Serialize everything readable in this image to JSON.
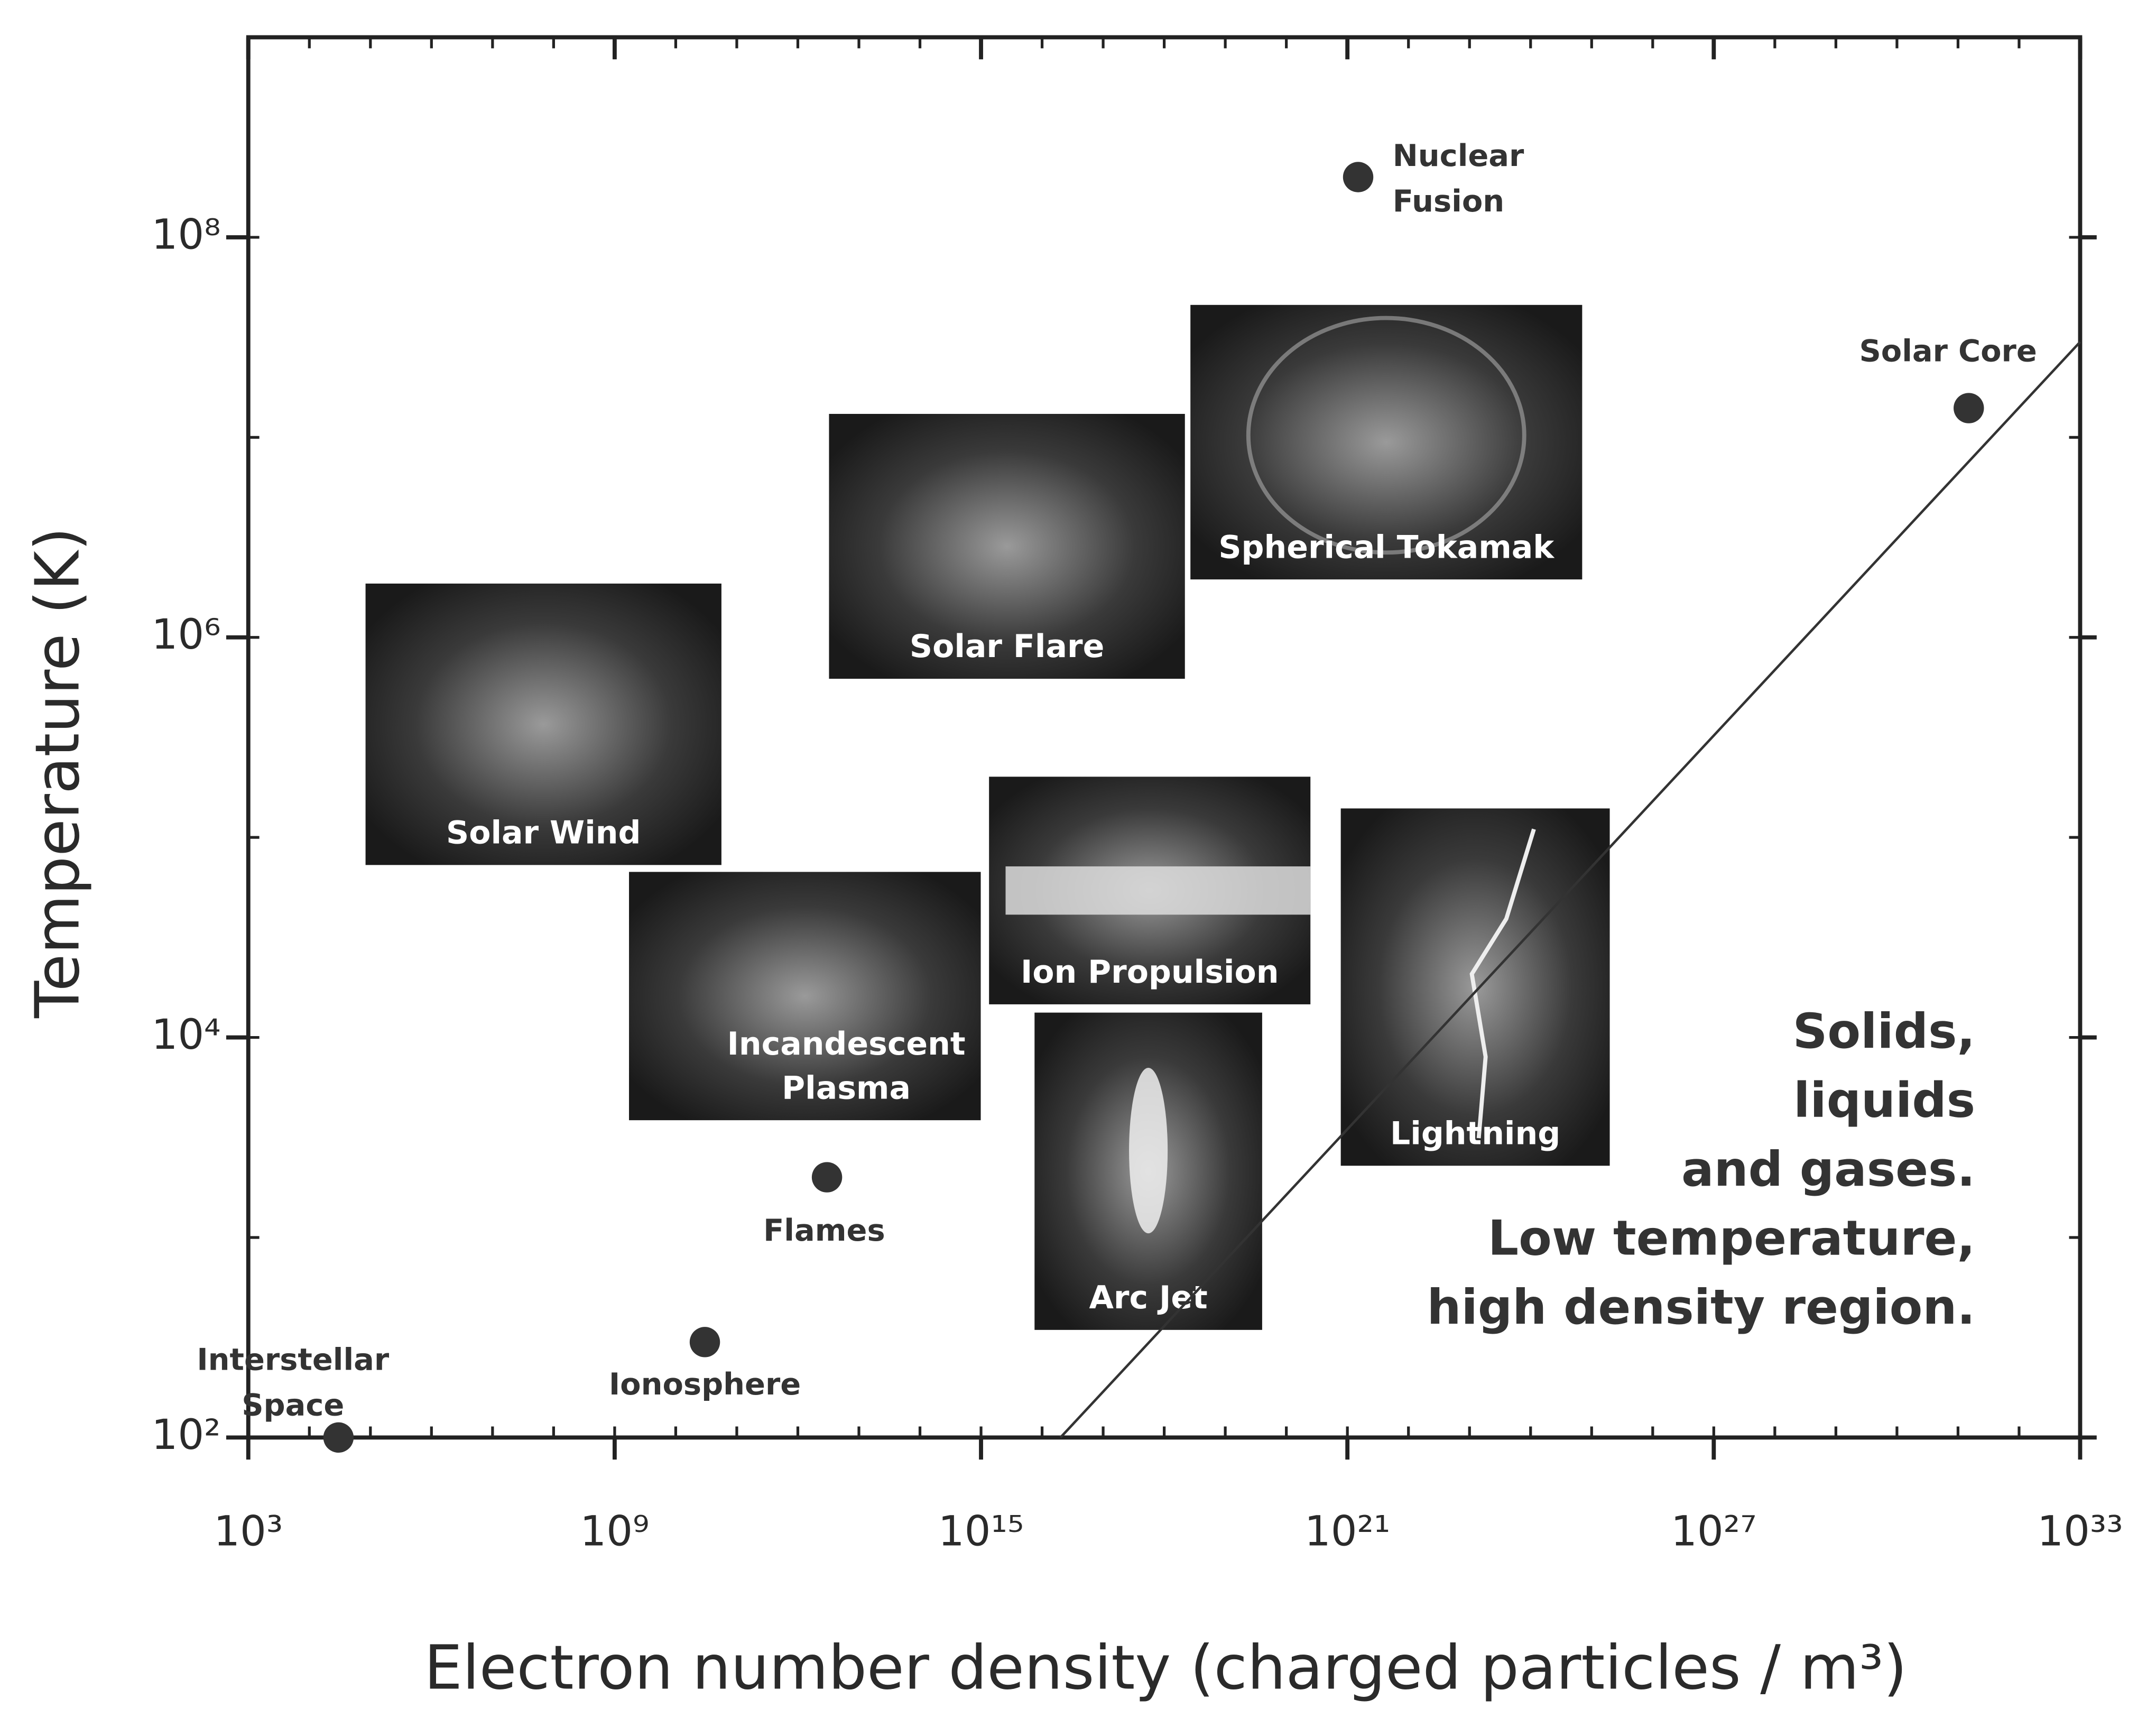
{
  "chart_data": {
    "type": "scatter",
    "y_label": "Temperature (K)",
    "x_label": "Electron number density (charged particles / m³)",
    "xscale": "log",
    "yscale": "log",
    "xlim": [
      1000.0,
      1e+33
    ],
    "ylim": [
      100,
      1000000000.0
    ],
    "xticks": [
      {
        "value": 1000.0,
        "label": "10³"
      },
      {
        "value": 1000000000.0,
        "label": "10⁹"
      },
      {
        "value": 1000000000000000.0,
        "label": "10¹⁵"
      },
      {
        "value": 1e+21,
        "label": "10²¹"
      },
      {
        "value": 1e+27,
        "label": "10²⁷"
      },
      {
        "value": 1e+33,
        "label": "10³³"
      }
    ],
    "yticks": [
      {
        "value": 100,
        "label": "10²"
      },
      {
        "value": 10000,
        "label": "10⁴"
      },
      {
        "value": 1000000,
        "label": "10⁶"
      },
      {
        "value": 100000000,
        "label": "10⁸"
      }
    ],
    "color": "#333333",
    "x": [
      30000.0,
      30000000000.0,
      3000000000000.0,
      1.5e+21,
      1.5e+31
    ],
    "values": [
      100,
      300,
      2000,
      200000000.0,
      14000000.0
    ],
    "point_labels": [
      [
        "Interstellar",
        "Space"
      ],
      [
        "Ionosphere"
      ],
      [
        "Flames"
      ],
      [
        "Nuclear",
        "Fusion"
      ],
      [
        "Solar Core"
      ]
    ],
    "boundary": {
      "x": [
        2e+16,
        1e+33
      ],
      "y": [
        100,
        30000000.0
      ]
    },
    "panels": [
      [
        "Solar Wind"
      ],
      [
        "Solar Flare"
      ],
      [
        "Spherical Tokamak"
      ],
      [
        "Incandescent",
        "Plasma"
      ],
      [
        "Ion Propulsion"
      ],
      [
        "Arc Jet"
      ],
      [
        "Lightning"
      ]
    ],
    "annotation": [
      "Solids,",
      "liquids",
      "and gases.",
      "Low temperature,",
      "high density region."
    ]
  }
}
